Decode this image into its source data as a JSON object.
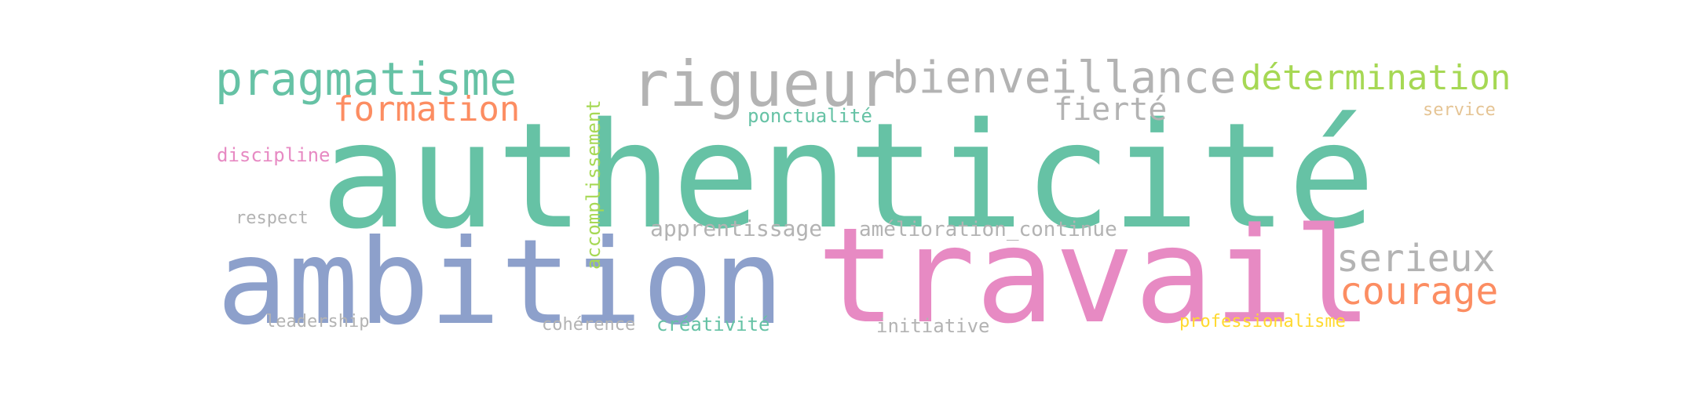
{
  "colors": {
    "teal": "#66c2a5",
    "orange": "#fc8d62",
    "blue": "#8da0cb",
    "pink": "#e78ac3",
    "lime": "#a6d854",
    "yellow": "#ffd92f",
    "tan": "#e5c494",
    "gray": "#b3b3b3"
  },
  "words": {
    "authenticite": "authenticité",
    "travail": "travail",
    "ambition": "ambition",
    "rigueur": "rigueur",
    "bienveillance": "bienveillance",
    "pragmatisme": "pragmatisme",
    "determination": "détermination",
    "formation": "formation",
    "fierte": "fierté",
    "ponctualite": "ponctualité",
    "service": "service",
    "discipline": "discipline",
    "accomplissement": "accomplissement",
    "respect": "respect",
    "apprentissage": "apprentissage",
    "amelioration_continue": "amélioration_continue",
    "serieux": "serieux",
    "courage": "courage",
    "leadership": "leadership",
    "coherence": "cohérence",
    "creativite": "créativité",
    "initiative": "initiative",
    "professionalisme": "professionalisme"
  }
}
